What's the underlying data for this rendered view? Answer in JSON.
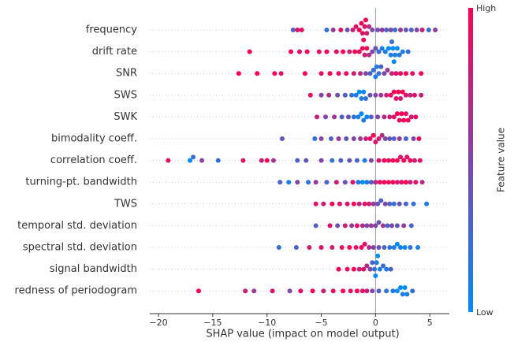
{
  "chart_data": {
    "type": "beeswarm",
    "xlabel": "SHAP value (impact on model output)",
    "xlim": [
      -20.8,
      6.8
    ],
    "xticks": [
      {
        "value": -20,
        "label": "−20"
      },
      {
        "value": -15,
        "label": "−15"
      },
      {
        "value": -10,
        "label": "−10"
      },
      {
        "value": -5,
        "label": "−5"
      },
      0,
      5
    ],
    "colorbar": {
      "label": "Feature value",
      "high": "High",
      "low": "Low",
      "colors": [
        "#008bfb",
        "#ff0052"
      ]
    },
    "series": [
      {
        "name": "frequency",
        "values": [
          -7.6,
          -7.2,
          -6.8,
          -4.5,
          -3.9,
          -3.2,
          -2.6,
          -2.1,
          -1.8,
          -1.5,
          -1.3,
          -1.2,
          -1.1,
          -1.0,
          -0.9,
          -0.8,
          -0.6,
          -0.3,
          0.2,
          0.6,
          1.0,
          1.4,
          1.8,
          2.3,
          2.8,
          3.3,
          3.8,
          4.3,
          4.9,
          5.5
        ],
        "feature_values": [
          0.3,
          0.9,
          0.9,
          0.2,
          0.6,
          0.9,
          0.4,
          0.8,
          0.9,
          1,
          1,
          0.9,
          1,
          0.9,
          1,
          0.8,
          0.7,
          0.5,
          0.4,
          0.6,
          0.3,
          0.5,
          0.2,
          0.6,
          0.4,
          0.3,
          0.5,
          0.8,
          0.2,
          0.6
        ]
      },
      {
        "name": "drift rate",
        "values": [
          -11.6,
          -7.8,
          -7.0,
          -6.3,
          -5.2,
          -4.5,
          -3.6,
          -3.0,
          -2.4,
          -1.9,
          -1.5,
          -1.2,
          -1.0,
          -0.8,
          -0.6,
          -0.3,
          0.0,
          0.3,
          0.6,
          0.9,
          1.2,
          1.4,
          1.6,
          1.8,
          2.0,
          2.2,
          1.5,
          1.7,
          2.5,
          3.0
        ],
        "feature_values": [
          1,
          1,
          0.9,
          1,
          0.9,
          1,
          0.9,
          1,
          0.8,
          1,
          0.9,
          1,
          0.8,
          0.9,
          0.7,
          0.5,
          0.4,
          0.2,
          0.1,
          0.1,
          0,
          0.1,
          0,
          0.1,
          0,
          0.1,
          0.2,
          0,
          0.1,
          0.2
        ]
      },
      {
        "name": "SNR",
        "values": [
          -12.6,
          -10.9,
          -9.3,
          -8.7,
          -6.5,
          -5.0,
          -4.2,
          -3.4,
          -2.7,
          -2.0,
          -1.4,
          -0.9,
          -0.5,
          -0.2,
          0.0,
          0.1,
          0.3,
          0.5,
          0.8,
          1.1,
          1.5,
          1.9,
          2.3,
          2.8,
          3.4,
          4.2
        ],
        "feature_values": [
          1,
          1,
          1,
          0.9,
          1,
          0.9,
          1,
          0.9,
          0.9,
          0.8,
          0.7,
          0.5,
          0.3,
          0.2,
          0.1,
          0.1,
          0.2,
          0.3,
          0.5,
          0.6,
          0.8,
          0.9,
          0.9,
          1,
          0.9,
          1
        ]
      },
      {
        "name": "SWS",
        "values": [
          -6.0,
          -5.0,
          -4.3,
          -3.5,
          -2.8,
          -2.2,
          -1.8,
          -1.5,
          -1.3,
          -1.1,
          -0.9,
          -0.5,
          0.0,
          0.5,
          1.0,
          1.4,
          1.7,
          1.9,
          2.1,
          2.3,
          2.5,
          2.8,
          3.2,
          3.6,
          4.2
        ],
        "feature_values": [
          0.9,
          0.5,
          0.7,
          0.4,
          0.3,
          0.2,
          0.1,
          0,
          0.1,
          0,
          0.2,
          0.4,
          0.5,
          0.6,
          0.8,
          0.9,
          1,
          0.9,
          1,
          0.8,
          1,
          0.9,
          0.7,
          0.9,
          0.8
        ]
      },
      {
        "name": "SWK",
        "values": [
          -5.4,
          -4.6,
          -3.8,
          -3.1,
          -2.5,
          -2.0,
          -1.6,
          -1.3,
          -1.1,
          -0.8,
          -0.4,
          0.2,
          0.8,
          1.3,
          1.7,
          2.0,
          2.2,
          2.4,
          2.6,
          2.8,
          3.0,
          3.3,
          3.7
        ],
        "feature_values": [
          0.8,
          0.5,
          0.6,
          0.3,
          0.4,
          0.2,
          0.1,
          0,
          0.1,
          0,
          0.3,
          0.5,
          0.7,
          0.8,
          0.9,
          1,
          0.9,
          1,
          1,
          0.9,
          1,
          0.8,
          0.9
        ]
      },
      {
        "name": "bimodality coeff.",
        "values": [
          -8.6,
          -5.6,
          -5.0,
          -4.1,
          -3.4,
          -2.7,
          -2.0,
          -1.4,
          -0.9,
          -0.5,
          -0.2,
          0.0,
          0.3,
          0.6,
          0.9,
          1.3,
          1.7,
          2.2,
          2.8,
          3.5,
          4.0
        ],
        "feature_values": [
          0.4,
          0.2,
          0.5,
          0.3,
          0.6,
          0.4,
          0.5,
          0.6,
          0.8,
          0.9,
          1,
          0.9,
          0.8,
          0.7,
          0.5,
          0.4,
          0.3,
          0.6,
          0.3,
          0.5,
          1
        ]
      },
      {
        "name": "correlation coeff.",
        "values": [
          -19.1,
          -17.1,
          -16.8,
          -16.0,
          -14.5,
          -12.2,
          -10.5,
          -10.0,
          -9.4,
          -7.2,
          -6.4,
          -5.0,
          -4.0,
          -3.2,
          -2.4,
          -1.7,
          -1.0,
          -0.4,
          0.3,
          0.8,
          1.2,
          1.6,
          2.0,
          2.3,
          2.6,
          2.9,
          3.2,
          3.6,
          4.1
        ],
        "feature_values": [
          0.9,
          0,
          0.2,
          0.5,
          0.2,
          0.9,
          0.8,
          1,
          0.6,
          0.3,
          0.4,
          0.5,
          0.2,
          0.3,
          0.4,
          0.3,
          0.1,
          0.5,
          0.9,
          1,
          0.9,
          1,
          1,
          0.9,
          1,
          0.9,
          1,
          0.8,
          0.9
        ]
      },
      {
        "name": "turning-pt. bandwidth",
        "values": [
          -8.8,
          -8.0,
          -7.2,
          -6.2,
          -5.5,
          -4.5,
          -3.6,
          -2.8,
          -2.1,
          -1.6,
          -1.2,
          -0.8,
          -0.4,
          0.0,
          0.4,
          0.8,
          1.2,
          1.6,
          2.0,
          2.4,
          2.8,
          3.2,
          3.7,
          4.3
        ],
        "feature_values": [
          0.3,
          0.1,
          0.5,
          0.2,
          0.6,
          0.3,
          0.8,
          0.4,
          0.9,
          0.1,
          0,
          0.1,
          0.3,
          0.7,
          0.9,
          1,
          0.9,
          1,
          0.8,
          0.9,
          1,
          0.8,
          0.9,
          0.7
        ]
      },
      {
        "name": "TWS",
        "values": [
          -5.5,
          -4.8,
          -4.0,
          -3.3,
          -2.6,
          -2.0,
          -1.5,
          -1.0,
          -0.6,
          -0.2,
          0.2,
          0.5,
          0.9,
          1.3,
          1.7,
          2.2,
          2.8,
          3.5,
          4.7
        ],
        "feature_values": [
          0.9,
          0.8,
          1,
          0.9,
          0.9,
          1,
          0.8,
          0.9,
          0.8,
          0.6,
          0.4,
          0.3,
          0.5,
          0.3,
          0.2,
          0.4,
          0.3,
          0.2,
          0.1
        ]
      },
      {
        "name": "temporal std. deviation",
        "values": [
          -5.5,
          -4.2,
          -3.5,
          -2.8,
          -2.2,
          -1.7,
          -1.2,
          -0.8,
          -0.4,
          0.0,
          0.3,
          0.7,
          1.1,
          1.5,
          2.0,
          2.6,
          3.3
        ],
        "feature_values": [
          0.3,
          0.9,
          0.4,
          0.8,
          0.6,
          0.9,
          0.7,
          0.5,
          0.6,
          0.5,
          0.4,
          0.6,
          0.3,
          0.5,
          0.4,
          0.6,
          0.3
        ]
      },
      {
        "name": "spectral std. deviation",
        "values": [
          -8.9,
          -7.3,
          -6.1,
          -5.0,
          -4.0,
          -3.1,
          -2.4,
          -1.8,
          -1.3,
          -1.0,
          -0.6,
          -0.2,
          0.3,
          0.8,
          1.3,
          1.7,
          2.0,
          2.3,
          2.7,
          3.2,
          3.9
        ],
        "feature_values": [
          0.2,
          0.3,
          0.8,
          0.9,
          0.8,
          0.9,
          1,
          0.9,
          1,
          0.9,
          0.7,
          0.5,
          0.4,
          0.3,
          0.2,
          0.1,
          0,
          0.1,
          0,
          0.2,
          0.1
        ]
      },
      {
        "name": "signal bandwidth",
        "values": [
          -3.4,
          -2.6,
          -2.0,
          -1.5,
          -1.1,
          -0.8,
          -0.5,
          -0.3,
          -0.1,
          0.0,
          0.1,
          0.2,
          0.4,
          0.7,
          1.0,
          1.4
        ],
        "feature_values": [
          1,
          0.9,
          1,
          0.8,
          0.9,
          0.7,
          0.5,
          0.3,
          0.2,
          0,
          0.1,
          0,
          0.1,
          0.2,
          0.1,
          0.3
        ]
      },
      {
        "name": "redness of periodogram",
        "values": [
          -16.3,
          -12.0,
          -11.2,
          -9.5,
          -7.9,
          -6.9,
          -5.8,
          -4.8,
          -3.9,
          -3.0,
          -2.3,
          -1.7,
          -1.2,
          -0.8,
          -0.3,
          0.3,
          1.0,
          1.6,
          2.0,
          2.3,
          2.5,
          2.7,
          2.9,
          3.4
        ],
        "feature_values": [
          1,
          0.8,
          0.6,
          0.9,
          0.5,
          0.9,
          1,
          0.8,
          0.9,
          1,
          0.9,
          1,
          0.9,
          0.8,
          0.5,
          0.3,
          0.2,
          0.1,
          0,
          0,
          0.1,
          0,
          0.1,
          0.2
        ]
      }
    ]
  }
}
